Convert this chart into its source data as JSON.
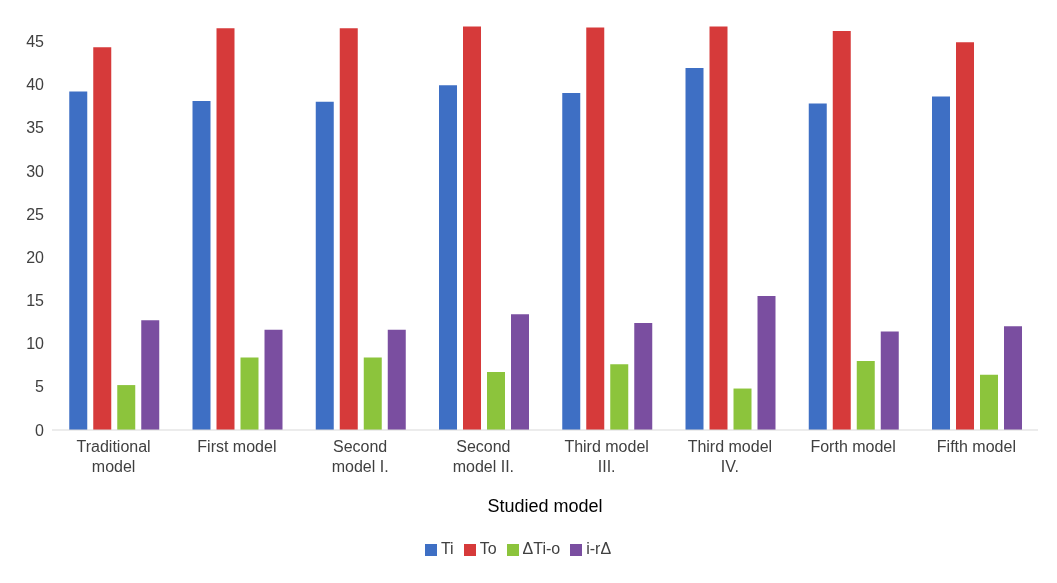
{
  "chart_data": {
    "type": "bar",
    "xlabel": "Studied model",
    "categories": [
      "Traditional model",
      "First model",
      "Second model I.",
      "Second model II.",
      "Third model III.",
      "Third model IV.",
      "Forth model",
      "Fifth model"
    ],
    "series": [
      {
        "name": "Ti",
        "color": "#3e6fc4",
        "values": [
          39.2,
          38.1,
          38.0,
          39.9,
          39.0,
          41.9,
          37.8,
          38.6
        ]
      },
      {
        "name": "To",
        "color": "#d63a3a",
        "values": [
          44.3,
          46.5,
          46.5,
          46.7,
          46.6,
          46.7,
          46.2,
          44.9
        ]
      },
      {
        "name": "ΔTi-o",
        "color": "#8cc43c",
        "values": [
          5.2,
          8.4,
          8.4,
          6.7,
          7.6,
          4.8,
          8.0,
          6.4
        ]
      },
      {
        "name": "i-rΔ",
        "color": "#7a4ea0",
        "values": [
          12.7,
          11.6,
          11.6,
          13.4,
          12.4,
          15.5,
          11.4,
          12.0
        ]
      }
    ],
    "ylim": [
      0,
      47
    ],
    "yticks": [
      0,
      5,
      10,
      15,
      20,
      25,
      30,
      35,
      40,
      45
    ],
    "grid": false,
    "legend": "bottom"
  }
}
